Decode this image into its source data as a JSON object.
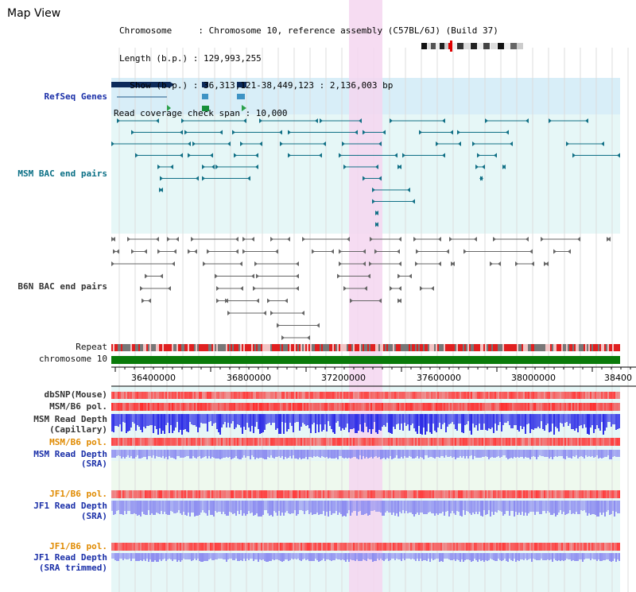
{
  "header": {
    "title": "Map View",
    "info_lines": [
      "Chromosome     : Chromosome 10, reference assembly (C57BL/6J) (Build 37)",
      "Length (b.p.) : 129,993,255",
      "  Show (b.p.) : 36,313,121-38,449,123 : 2,136,003 bp",
      "Read coverage check span : 10,000"
    ]
  },
  "tracks": {
    "refseq": "RefSeq Genes",
    "msm_bac": "MSM BAC end pairs",
    "b6n_bac": "B6N BAC end pairs",
    "repeat": "Repeat",
    "chromosome": "chromosome 10",
    "dbsnp": "dbSNP(Mouse)",
    "msm_b6_pol": "MSM/B6 pol.",
    "msm_read_depth_cap_1": "MSM Read Depth",
    "msm_read_depth_cap_2": "(Capillary)",
    "msm_b6_pol_2": "MSM/B6 pol.",
    "msm_read_depth_sra_1": "MSM Read Depth",
    "msm_read_depth_sra_2": "(SRA)",
    "jf1_b6_pol": "JF1/B6 pol.",
    "jf1_read_depth_sra_1": "JF1 Read Depth",
    "jf1_read_depth_sra_2": "(SRA)",
    "jf1_b6_pol_2": "JF1/B6 pol.",
    "jf1_read_depth_trim_1": "JF1 Read Depth",
    "jf1_read_depth_trim_2": "(SRA trimmed)"
  },
  "axis": {
    "ticks": [
      "36400000",
      "36800000",
      "37200000",
      "37600000",
      "38000000",
      "38400"
    ]
  },
  "colors": {
    "highlight": "#f5d6f0",
    "refseq_bg": "#d8eef8",
    "panel_bg": "#e6f7f7",
    "chromosome": "#0a7a0a",
    "depth_blue": "#2a2ae6",
    "depth_light": "#8c8cf0"
  }
}
